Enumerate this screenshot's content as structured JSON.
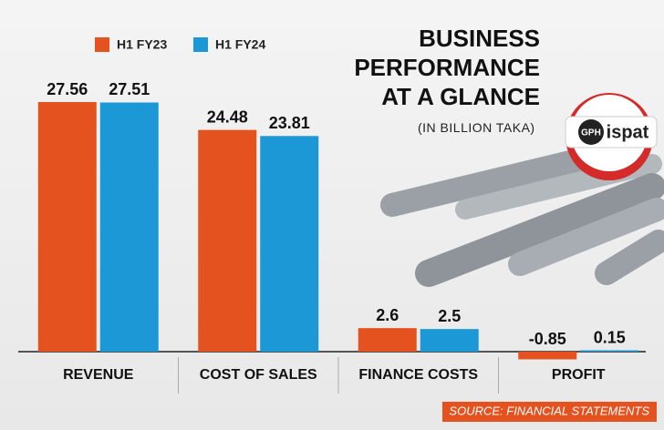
{
  "chart_data": {
    "type": "bar",
    "title": "BUSINESS PERFORMANCE AT A GLANCE",
    "subtitle": "(IN BILLION TAKA)",
    "logo": {
      "left": "GPH",
      "right": "ispat"
    },
    "source": "SOURCE: FINANCIAL STATEMENTS",
    "categories": [
      "REVENUE",
      "COST OF SALES",
      "FINANCE COSTS",
      "PROFIT"
    ],
    "series": [
      {
        "name": "H1 FY23",
        "color": "#e4531f",
        "values": [
          27.56,
          24.48,
          2.6,
          -0.85
        ]
      },
      {
        "name": "H1 FY24",
        "color": "#1b98d5",
        "values": [
          27.51,
          23.81,
          2.5,
          0.15
        ]
      }
    ]
  }
}
